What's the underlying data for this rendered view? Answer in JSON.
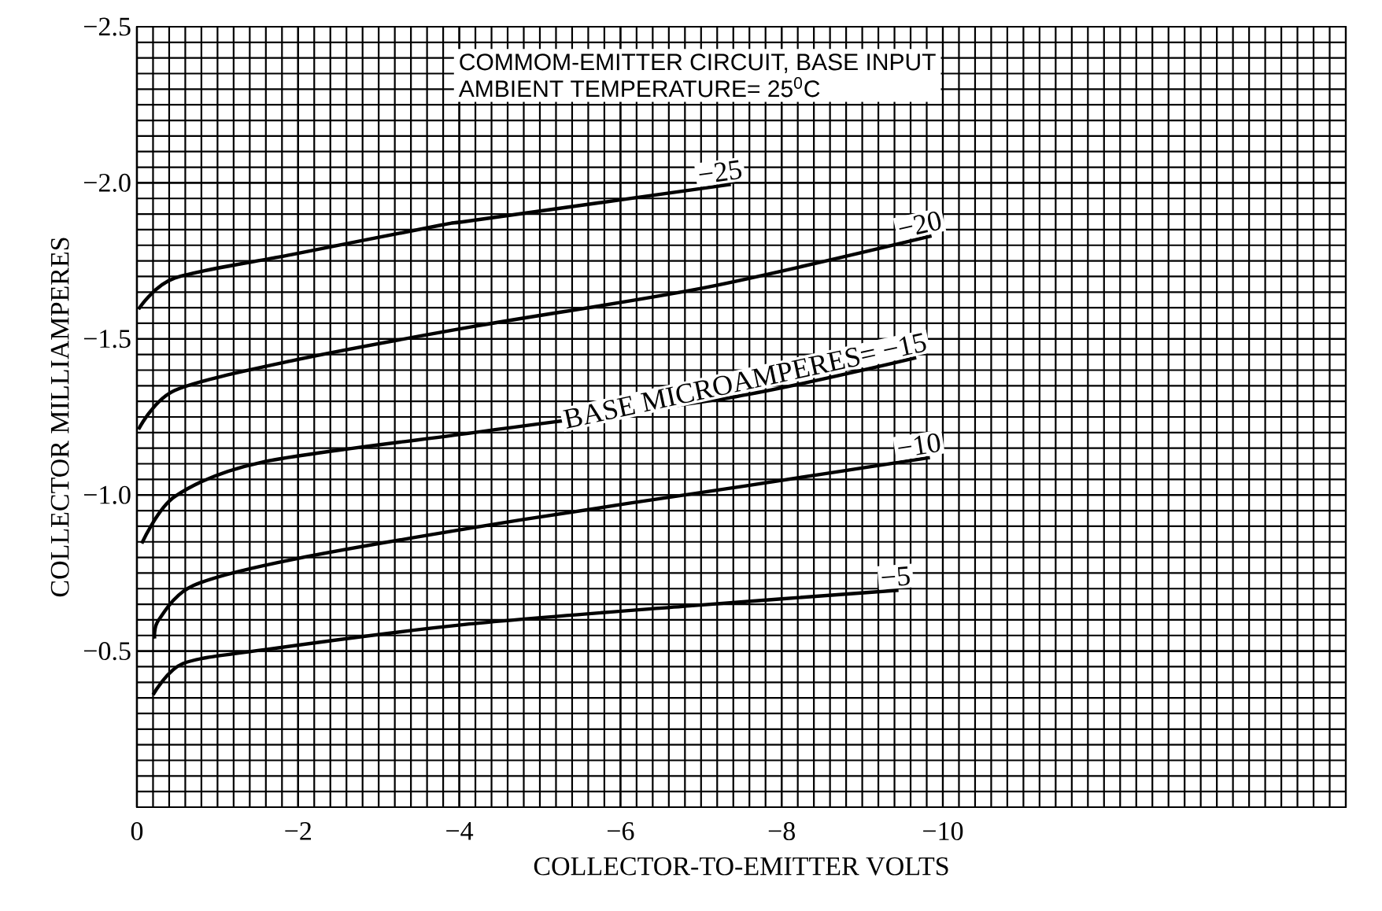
{
  "chart_data": {
    "type": "line",
    "xlabel": "COLLECTOR-TO-EMITTER VOLTS",
    "ylabel": "COLLECTOR MILLIAMPERES",
    "annotations": [
      "COMMOM-EMITTER CIRCUIT, BASE INPUT",
      "AMBIENT TEMPERATURE= 25$^{0}$C"
    ],
    "xlim": [
      0,
      -15
    ],
    "ylim": [
      0,
      -2.5
    ],
    "xticks": [
      0,
      {
        "value": -2,
        "label": "−2"
      },
      {
        "value": -4,
        "label": "−4"
      },
      {
        "value": -6,
        "label": "−6"
      },
      {
        "value": -8,
        "label": "−8"
      },
      {
        "value": -10,
        "label": "−10"
      }
    ],
    "yticks": [
      {
        "value": -0.5,
        "label": "−0.5"
      },
      {
        "value": -1.0,
        "label": "−1.0"
      },
      {
        "value": -1.5,
        "label": "−1.5"
      },
      {
        "value": -2.0,
        "label": "−2.0"
      },
      {
        "value": -2.5,
        "label": "−2.5"
      }
    ],
    "grid": true,
    "marker": "none",
    "line_style": "solid",
    "series": [
      {
        "name": "−25",
        "color": "#000000",
        "x": [
          -0.02,
          -0.47,
          -1.92,
          -3.78,
          -4.18,
          -7.37
        ],
        "values": [
          -1.595,
          -1.695,
          -1.77,
          -1.865,
          -1.88,
          -1.995
        ]
      },
      {
        "name": "−20",
        "color": "#000000",
        "x": [
          -0.02,
          -0.47,
          -1.92,
          -4.18,
          -7.06,
          -9.86
        ],
        "values": [
          -1.21,
          -1.335,
          -1.43,
          -1.54,
          -1.665,
          -1.83
        ]
      },
      {
        "name": "BASE MICROAMPERES= −15",
        "color": "#000000",
        "x": [
          -0.06,
          -0.47,
          -1.55,
          -4.18,
          -7.43,
          -9.67
        ],
        "values": [
          -0.845,
          -0.995,
          -1.105,
          -1.2,
          -1.315,
          -1.44
        ]
      },
      {
        "name": "−10",
        "color": "#000000",
        "x": [
          -0.22,
          -0.27,
          -0.7,
          -1.96,
          -4.76,
          -7.57,
          -9.84
        ],
        "values": [
          -0.54,
          -0.6,
          -0.71,
          -0.795,
          -0.92,
          -1.03,
          -1.12
        ]
      },
      {
        "name": "−5",
        "color": "#000000",
        "x": [
          -0.2,
          -0.57,
          -1.6,
          -4.06,
          -6.86,
          -9.45
        ],
        "values": [
          -0.36,
          -0.46,
          -0.505,
          -0.585,
          -0.645,
          -0.695
        ]
      }
    ]
  }
}
